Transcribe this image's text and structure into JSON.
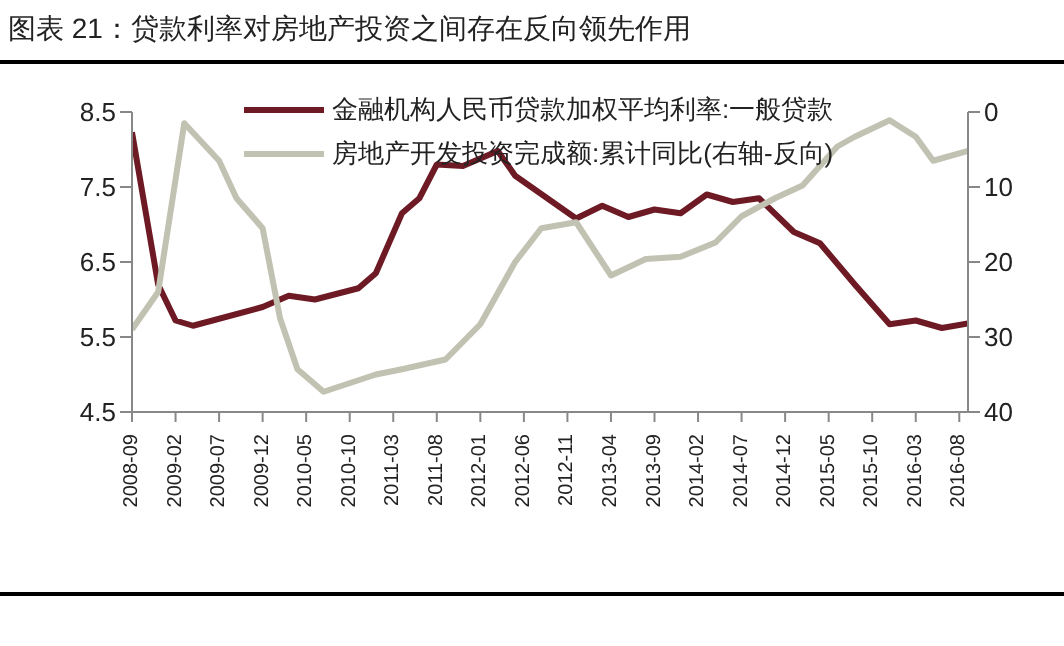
{
  "chart_data": {
    "type": "line",
    "title": "图表 21：贷款利率对房地产投资之间存在反向领先作用",
    "xlim": [
      "2008-09",
      "2016-09"
    ],
    "xticks": [
      "2008-09",
      "2009-02",
      "2009-07",
      "2009-12",
      "2010-05",
      "2010-10",
      "2011-03",
      "2011-08",
      "2012-01",
      "2012-06",
      "2012-11",
      "2013-04",
      "2013-09",
      "2014-02",
      "2014-07",
      "2014-12",
      "2015-05",
      "2015-10",
      "2016-03",
      "2016-08"
    ],
    "ylim": [
      4.5,
      8.5
    ],
    "yticks": [
      4.5,
      5.5,
      6.5,
      7.5,
      8.5
    ],
    "y2lim": [
      40,
      0
    ],
    "y2ticks": [
      0,
      10,
      20,
      30,
      40
    ],
    "grid": false,
    "legend": "top right",
    "marker": "none",
    "line_style": "solid",
    "series": [
      {
        "name": "金融机构人民币贷款加权平均利率:一般贷款",
        "color": "#6e1a24",
        "x": [
          "2008-09",
          "2008-12",
          "2009-02",
          "2009-04",
          "2009-12",
          "2010-03",
          "2010-06",
          "2010-11",
          "2011-01",
          "2011-04",
          "2011-06",
          "2011-08",
          "2011-11",
          "2012-03",
          "2012-05",
          "2012-12",
          "2013-03",
          "2013-06",
          "2013-09",
          "2013-12",
          "2014-03",
          "2014-06",
          "2014-09",
          "2015-01",
          "2015-04",
          "2015-08",
          "2015-12",
          "2016-03",
          "2016-06",
          "2016-09"
        ],
        "values": [
          8.23,
          6.2,
          5.72,
          5.65,
          5.9,
          6.05,
          6.0,
          6.15,
          6.35,
          7.15,
          7.35,
          7.8,
          7.78,
          7.98,
          7.65,
          7.08,
          7.25,
          7.1,
          7.2,
          7.15,
          7.4,
          7.3,
          7.35,
          6.9,
          6.75,
          6.2,
          5.67,
          5.72,
          5.62,
          5.68
        ]
      },
      {
        "name": "房地产开发投资完成额:累计同比(右轴-反向)",
        "color": "#c2c2b2",
        "axis": "y2",
        "x": [
          "2008-09",
          "2008-12",
          "2009-03",
          "2009-07",
          "2009-09",
          "2009-12",
          "2010-02",
          "2010-04",
          "2010-07",
          "2011-01",
          "2011-04",
          "2011-09",
          "2012-01",
          "2012-05",
          "2012-08",
          "2012-12",
          "2013-04",
          "2013-08",
          "2013-12",
          "2014-04",
          "2014-07",
          "2014-11",
          "2015-02",
          "2015-06",
          "2015-08",
          "2015-12",
          "2016-03",
          "2016-05",
          "2016-09"
        ],
        "values": [
          29,
          24,
          1.5,
          6.5,
          11.5,
          15.5,
          27.5,
          34.3,
          37.3,
          35,
          34.3,
          33,
          28.3,
          20,
          15.5,
          14.7,
          21.8,
          19.6,
          19.3,
          17.4,
          13.9,
          11.4,
          9.8,
          4.6,
          3.3,
          1.1,
          3.3,
          6.5,
          5.2
        ]
      }
    ]
  }
}
